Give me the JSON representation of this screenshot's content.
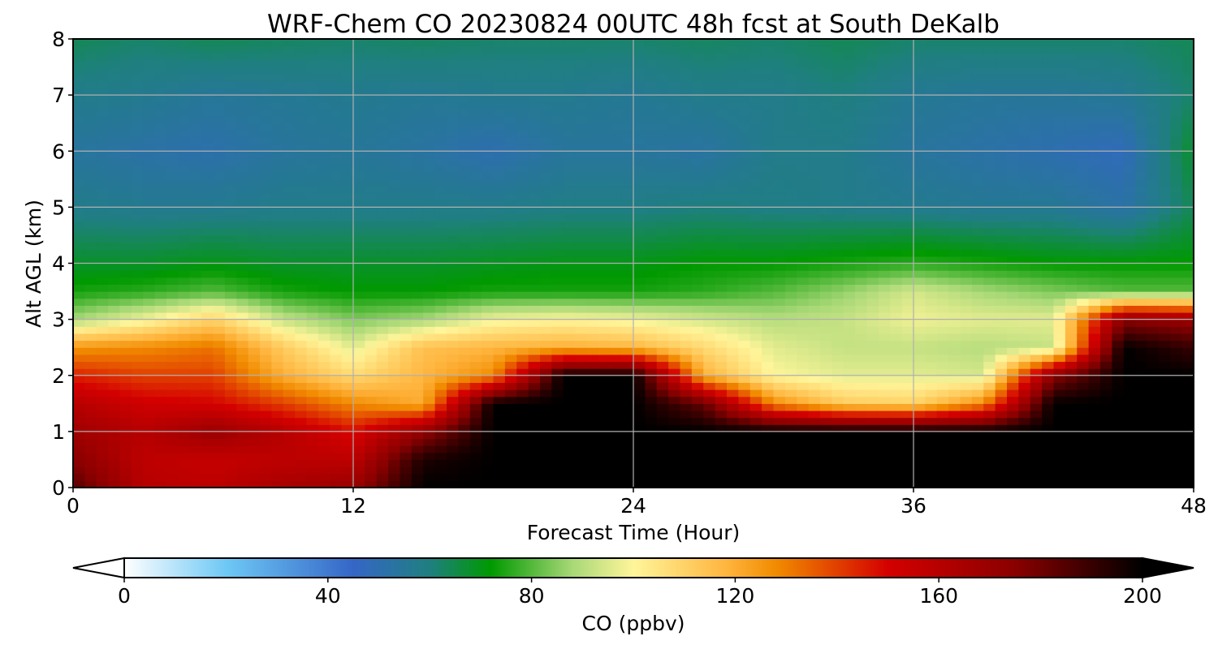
{
  "chart_data": {
    "type": "heatmap",
    "title": "WRF-Chem CO  20230824 00UTC 48h fcst at South DeKalb",
    "xlabel": "Forecast Time (Hour)",
    "ylabel": "Alt AGL (km)",
    "xlim": [
      0,
      48
    ],
    "ylim": [
      0,
      8
    ],
    "xticks": [
      "0",
      "12",
      "24",
      "36",
      "48"
    ],
    "yticks": [
      "0",
      "1",
      "2",
      "3",
      "4",
      "5",
      "6",
      "7",
      "8"
    ],
    "grid": true,
    "colorbar": {
      "label": "CO  (ppbv)",
      "min": 0,
      "max": 200,
      "ticks": [
        "0",
        "40",
        "80",
        "120",
        "160",
        "200"
      ],
      "extend": "both",
      "color_stops": [
        {
          "v": 0,
          "c": "#ffffff"
        },
        {
          "v": 20,
          "c": "#6ec8f5"
        },
        {
          "v": 45,
          "c": "#3566c7"
        },
        {
          "v": 60,
          "c": "#1f7f80"
        },
        {
          "v": 72,
          "c": "#009900"
        },
        {
          "v": 88,
          "c": "#a8d877"
        },
        {
          "v": 100,
          "c": "#fff59a"
        },
        {
          "v": 118,
          "c": "#ffb640"
        },
        {
          "v": 128,
          "c": "#f18b00"
        },
        {
          "v": 150,
          "c": "#d40000"
        },
        {
          "v": 175,
          "c": "#8a0000"
        },
        {
          "v": 200,
          "c": "#000000"
        }
      ]
    },
    "field": {
      "x_hours": [
        0,
        3,
        6,
        9,
        12,
        15,
        18,
        21,
        24,
        27,
        30,
        33,
        36,
        39,
        42,
        45,
        48
      ],
      "altitude_km": [
        0,
        0.5,
        1,
        1.5,
        2,
        2.5,
        3,
        3.5,
        4,
        5,
        6,
        7,
        8
      ],
      "co_ppbv": [
        [
          185,
          160,
          158,
          165,
          170,
          200,
          200,
          200,
          200,
          200,
          200,
          200,
          200,
          200,
          200,
          200,
          200
        ],
        [
          175,
          158,
          155,
          158,
          158,
          195,
          200,
          200,
          200,
          200,
          200,
          200,
          200,
          200,
          200,
          200,
          200
        ],
        [
          168,
          160,
          170,
          160,
          148,
          172,
          200,
          200,
          200,
          200,
          200,
          200,
          200,
          200,
          200,
          200,
          200
        ],
        [
          160,
          152,
          150,
          140,
          128,
          120,
          200,
          200,
          200,
          182,
          128,
          112,
          110,
          128,
          200,
          200,
          200
        ],
        [
          145,
          140,
          140,
          120,
          108,
          118,
          128,
          200,
          200,
          120,
          100,
          96,
          96,
          94,
          175,
          200,
          200
        ],
        [
          126,
          128,
          132,
          112,
          96,
          115,
          118,
          120,
          118,
          108,
          96,
          92,
          92,
          90,
          92,
          200,
          190
        ],
        [
          88,
          98,
          110,
          92,
          84,
          88,
          98,
          100,
          98,
          94,
          90,
          92,
          98,
          96,
          96,
          175,
          170
        ],
        [
          74,
          76,
          80,
          74,
          72,
          72,
          74,
          74,
          74,
          76,
          80,
          86,
          94,
          88,
          84,
          80,
          80
        ],
        [
          68,
          68,
          70,
          68,
          68,
          68,
          69,
          70,
          70,
          72,
          72,
          74,
          76,
          74,
          72,
          72,
          72
        ],
        [
          58,
          57,
          57,
          58,
          58,
          58,
          58,
          59,
          59,
          60,
          59,
          58,
          57,
          56,
          56,
          52,
          64
        ],
        [
          54,
          52,
          51,
          54,
          55,
          53,
          50,
          54,
          54,
          53,
          58,
          58,
          54,
          52,
          50,
          48,
          68
        ],
        [
          58,
          57,
          55,
          56,
          57,
          56,
          57,
          57,
          56,
          58,
          58,
          60,
          56,
          55,
          55,
          56,
          62
        ],
        [
          64,
          62,
          64,
          63,
          62,
          63,
          62,
          62,
          62,
          63,
          62,
          64,
          62,
          62,
          62,
          62,
          64
        ]
      ]
    }
  }
}
